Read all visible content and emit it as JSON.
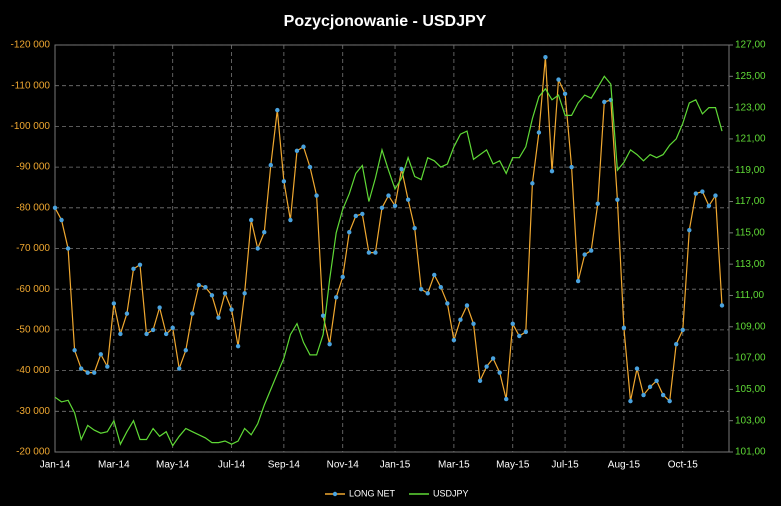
{
  "chart_data": {
    "type": "line",
    "title": "Pozycjonowanie - USDJPY",
    "categories": [
      "Jan-14",
      null,
      null,
      null,
      null,
      null,
      null,
      null,
      null,
      "Mar-14",
      null,
      null,
      null,
      null,
      null,
      null,
      null,
      null,
      "May-14",
      null,
      null,
      null,
      null,
      null,
      null,
      null,
      null,
      "Jul-14",
      null,
      null,
      null,
      null,
      null,
      null,
      null,
      "Sep-14",
      null,
      null,
      null,
      null,
      null,
      null,
      null,
      null,
      "Nov-14",
      null,
      null,
      null,
      null,
      null,
      null,
      null,
      "Jan-15",
      null,
      null,
      null,
      null,
      null,
      null,
      null,
      null,
      "Mar-15",
      null,
      null,
      null,
      null,
      null,
      null,
      null,
      null,
      "May-15",
      null,
      null,
      null,
      null,
      null,
      null,
      null,
      "Jul-15",
      null,
      null,
      null,
      null,
      null,
      null,
      null,
      null,
      "Aug-15",
      null,
      null,
      null,
      null,
      null,
      null,
      null,
      null,
      "Oct-15",
      null,
      null,
      null,
      null,
      null,
      null
    ],
    "series": [
      {
        "name": "LONG NET",
        "color": "#f0a830",
        "marker_color": "#4aa3df",
        "axis": "y",
        "values": [
          -80000,
          -77000,
          -70000,
          -45000,
          -40500,
          -39500,
          -39500,
          -44000,
          -41000,
          -56500,
          -49000,
          -54000,
          -65000,
          -66000,
          -49000,
          -50000,
          -55500,
          -49000,
          -50500,
          -40500,
          -45000,
          -54000,
          -61000,
          -60500,
          -58500,
          -53000,
          -59000,
          -55000,
          -46000,
          -59000,
          -77000,
          -70000,
          -74000,
          -90500,
          -104000,
          -86500,
          -77000,
          -94000,
          -95000,
          -90000,
          -83000,
          -53500,
          -46500,
          -58000,
          -63000,
          -74000,
          -78000,
          -78500,
          -69000,
          -69000,
          -80000,
          -83000,
          -80500,
          -89500,
          -82000,
          -75000,
          -60000,
          -59000,
          -63500,
          -60500,
          -56500,
          -47500,
          -52500,
          -56000,
          -51500,
          -37500,
          -41000,
          -43000,
          -39500,
          -33000,
          -51500,
          -48500,
          -49500,
          -86000,
          -98500,
          -117000,
          -89000,
          -111500,
          -108000,
          -90000,
          -62000,
          -68500,
          -69500,
          -81000,
          -106000,
          -106500,
          -82000,
          -50500,
          -32500,
          -40500,
          -34000,
          -36000,
          -37500,
          -34000,
          -32500,
          -46500,
          -50000,
          -74500,
          -83500,
          -84000,
          -80500,
          -83000,
          -56000
        ]
      },
      {
        "name": "USDJPY",
        "color": "#5fd936",
        "axis": "y2",
        "values": [
          104.5,
          104.2,
          104.3,
          103.5,
          101.8,
          102.7,
          102.4,
          102.2,
          102.3,
          103.0,
          101.5,
          102.3,
          103.0,
          101.8,
          101.8,
          102.5,
          102.0,
          102.3,
          101.4,
          102.0,
          102.5,
          102.3,
          102.1,
          101.9,
          101.6,
          101.6,
          101.7,
          101.5,
          101.7,
          102.5,
          102.1,
          102.8,
          104.0,
          105.0,
          106.0,
          107.0,
          108.5,
          109.2,
          108.0,
          107.2,
          107.2,
          108.5,
          112.0,
          115.0,
          116.5,
          117.5,
          118.8,
          119.3,
          117.0,
          118.5,
          120.3,
          119.0,
          117.8,
          118.5,
          119.8,
          118.6,
          118.4,
          119.8,
          119.6,
          119.2,
          119.4,
          120.5,
          121.3,
          121.5,
          119.7,
          120.0,
          120.3,
          119.4,
          119.6,
          118.8,
          119.8,
          119.8,
          120.5,
          122.3,
          123.7,
          124.2,
          123.5,
          123.8,
          122.5,
          122.5,
          123.3,
          123.8,
          123.6,
          124.3,
          125.0,
          124.5,
          119.0,
          119.5,
          120.3,
          120.0,
          119.6,
          120.0,
          119.8,
          120.0,
          120.6,
          121.0,
          122.0,
          123.3,
          123.5,
          122.6,
          123.0,
          123.0,
          121.5
        ]
      }
    ],
    "ylim": [
      -20000,
      -120000
    ],
    "yticks": [
      {
        "value": -120000,
        "label": "-120 000"
      },
      {
        "value": -110000,
        "label": "-110 000"
      },
      {
        "value": -100000,
        "label": "-100 000"
      },
      {
        "value": -90000,
        "label": "-90 000"
      },
      {
        "value": -80000,
        "label": "-80 000"
      },
      {
        "value": -70000,
        "label": "-70 000"
      },
      {
        "value": -60000,
        "label": "-60 000"
      },
      {
        "value": -50000,
        "label": "-50 000"
      },
      {
        "value": -40000,
        "label": "-40 000"
      },
      {
        "value": -30000,
        "label": "-30 000"
      },
      {
        "value": -20000,
        "label": "-20 000"
      }
    ],
    "y2lim": [
      101,
      127
    ],
    "y2ticks": [
      {
        "value": 101,
        "label": "101,00"
      },
      {
        "value": 103,
        "label": "103,00"
      },
      {
        "value": 105,
        "label": "105,00"
      },
      {
        "value": 107,
        "label": "107,00"
      },
      {
        "value": 109,
        "label": "109,00"
      },
      {
        "value": 111,
        "label": "111,00"
      },
      {
        "value": 113,
        "label": "113,00"
      },
      {
        "value": 115,
        "label": "115,00"
      },
      {
        "value": 117,
        "label": "117,00"
      },
      {
        "value": 119,
        "label": "119,00"
      },
      {
        "value": 121,
        "label": "121,00"
      },
      {
        "value": 123,
        "label": "123,00"
      },
      {
        "value": 125,
        "label": "125,00"
      },
      {
        "value": 127,
        "label": "127,00"
      }
    ],
    "grid": true,
    "legend": "bottom"
  }
}
